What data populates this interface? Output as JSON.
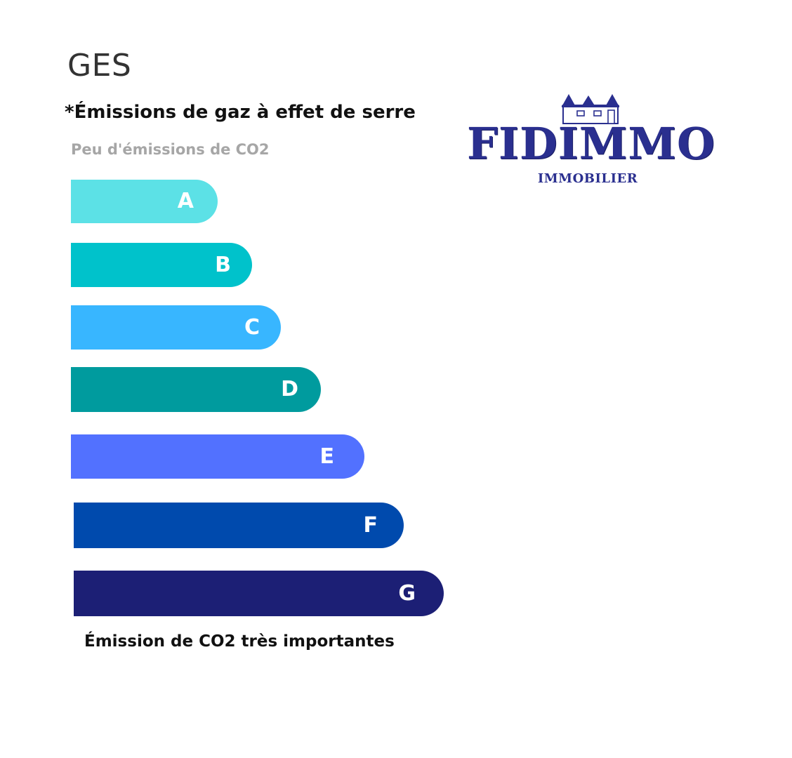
{
  "title": "GES",
  "subtitle": "*Émissions de gaz à effet de serre",
  "scale_top_label": "Peu d'émissions de CO2",
  "scale_bottom_label": "Émission de CO2 très importantes",
  "bars": [
    {
      "letter": "A",
      "color": "#5ce1e6"
    },
    {
      "letter": "B",
      "color": "#00c2cb"
    },
    {
      "letter": "C",
      "color": "#38b6ff"
    },
    {
      "letter": "D",
      "color": "#009b9e"
    },
    {
      "letter": "E",
      "color": "#5271ff"
    },
    {
      "letter": "F",
      "color": "#004aad"
    },
    {
      "letter": "G",
      "color": "#1c1f75"
    }
  ],
  "logo": {
    "name": "FIDIMMO",
    "tagline": "IMMOBILIER",
    "color": "#2a2f8f",
    "icon": "houses-icon"
  }
}
